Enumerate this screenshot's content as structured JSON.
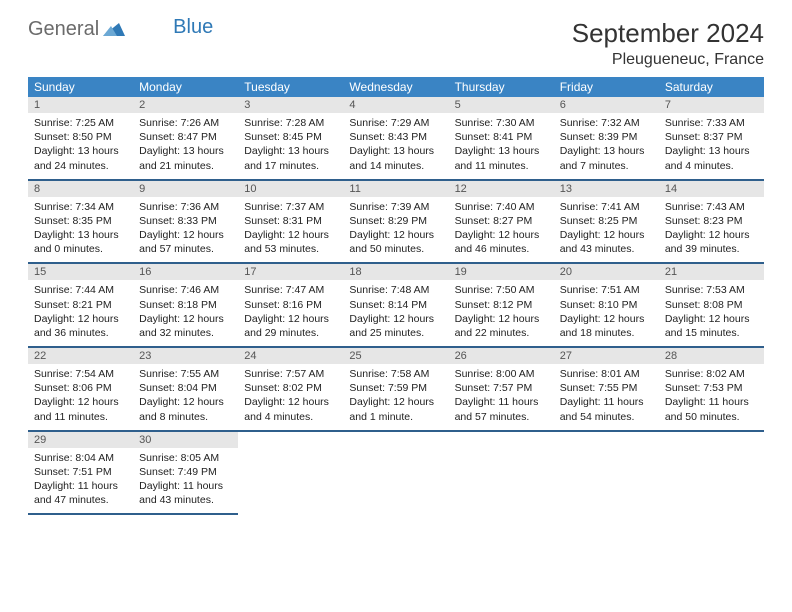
{
  "brand": {
    "part1": "General",
    "part2": "Blue"
  },
  "title": "September 2024",
  "location": "Pleugueneuc, France",
  "colors": {
    "header_bg": "#3a84c4",
    "week_border": "#2f5f8c",
    "daynum_bg": "#e6e6e6",
    "logo_gray": "#6b6b6b",
    "logo_blue": "#2f79b6"
  },
  "day_headers": [
    "Sunday",
    "Monday",
    "Tuesday",
    "Wednesday",
    "Thursday",
    "Friday",
    "Saturday"
  ],
  "weeks": [
    [
      {
        "n": "1",
        "sr": "7:25 AM",
        "ss": "8:50 PM",
        "dl": "13 hours and 24 minutes."
      },
      {
        "n": "2",
        "sr": "7:26 AM",
        "ss": "8:47 PM",
        "dl": "13 hours and 21 minutes."
      },
      {
        "n": "3",
        "sr": "7:28 AM",
        "ss": "8:45 PM",
        "dl": "13 hours and 17 minutes."
      },
      {
        "n": "4",
        "sr": "7:29 AM",
        "ss": "8:43 PM",
        "dl": "13 hours and 14 minutes."
      },
      {
        "n": "5",
        "sr": "7:30 AM",
        "ss": "8:41 PM",
        "dl": "13 hours and 11 minutes."
      },
      {
        "n": "6",
        "sr": "7:32 AM",
        "ss": "8:39 PM",
        "dl": "13 hours and 7 minutes."
      },
      {
        "n": "7",
        "sr": "7:33 AM",
        "ss": "8:37 PM",
        "dl": "13 hours and 4 minutes."
      }
    ],
    [
      {
        "n": "8",
        "sr": "7:34 AM",
        "ss": "8:35 PM",
        "dl": "13 hours and 0 minutes."
      },
      {
        "n": "9",
        "sr": "7:36 AM",
        "ss": "8:33 PM",
        "dl": "12 hours and 57 minutes."
      },
      {
        "n": "10",
        "sr": "7:37 AM",
        "ss": "8:31 PM",
        "dl": "12 hours and 53 minutes."
      },
      {
        "n": "11",
        "sr": "7:39 AM",
        "ss": "8:29 PM",
        "dl": "12 hours and 50 minutes."
      },
      {
        "n": "12",
        "sr": "7:40 AM",
        "ss": "8:27 PM",
        "dl": "12 hours and 46 minutes."
      },
      {
        "n": "13",
        "sr": "7:41 AM",
        "ss": "8:25 PM",
        "dl": "12 hours and 43 minutes."
      },
      {
        "n": "14",
        "sr": "7:43 AM",
        "ss": "8:23 PM",
        "dl": "12 hours and 39 minutes."
      }
    ],
    [
      {
        "n": "15",
        "sr": "7:44 AM",
        "ss": "8:21 PM",
        "dl": "12 hours and 36 minutes."
      },
      {
        "n": "16",
        "sr": "7:46 AM",
        "ss": "8:18 PM",
        "dl": "12 hours and 32 minutes."
      },
      {
        "n": "17",
        "sr": "7:47 AM",
        "ss": "8:16 PM",
        "dl": "12 hours and 29 minutes."
      },
      {
        "n": "18",
        "sr": "7:48 AM",
        "ss": "8:14 PM",
        "dl": "12 hours and 25 minutes."
      },
      {
        "n": "19",
        "sr": "7:50 AM",
        "ss": "8:12 PM",
        "dl": "12 hours and 22 minutes."
      },
      {
        "n": "20",
        "sr": "7:51 AM",
        "ss": "8:10 PM",
        "dl": "12 hours and 18 minutes."
      },
      {
        "n": "21",
        "sr": "7:53 AM",
        "ss": "8:08 PM",
        "dl": "12 hours and 15 minutes."
      }
    ],
    [
      {
        "n": "22",
        "sr": "7:54 AM",
        "ss": "8:06 PM",
        "dl": "12 hours and 11 minutes."
      },
      {
        "n": "23",
        "sr": "7:55 AM",
        "ss": "8:04 PM",
        "dl": "12 hours and 8 minutes."
      },
      {
        "n": "24",
        "sr": "7:57 AM",
        "ss": "8:02 PM",
        "dl": "12 hours and 4 minutes."
      },
      {
        "n": "25",
        "sr": "7:58 AM",
        "ss": "7:59 PM",
        "dl": "12 hours and 1 minute."
      },
      {
        "n": "26",
        "sr": "8:00 AM",
        "ss": "7:57 PM",
        "dl": "11 hours and 57 minutes."
      },
      {
        "n": "27",
        "sr": "8:01 AM",
        "ss": "7:55 PM",
        "dl": "11 hours and 54 minutes."
      },
      {
        "n": "28",
        "sr": "8:02 AM",
        "ss": "7:53 PM",
        "dl": "11 hours and 50 minutes."
      }
    ],
    [
      {
        "n": "29",
        "sr": "8:04 AM",
        "ss": "7:51 PM",
        "dl": "11 hours and 47 minutes."
      },
      {
        "n": "30",
        "sr": "8:05 AM",
        "ss": "7:49 PM",
        "dl": "11 hours and 43 minutes."
      },
      null,
      null,
      null,
      null,
      null
    ]
  ],
  "labels": {
    "sunrise": "Sunrise: ",
    "sunset": "Sunset: ",
    "daylight": "Daylight: "
  }
}
